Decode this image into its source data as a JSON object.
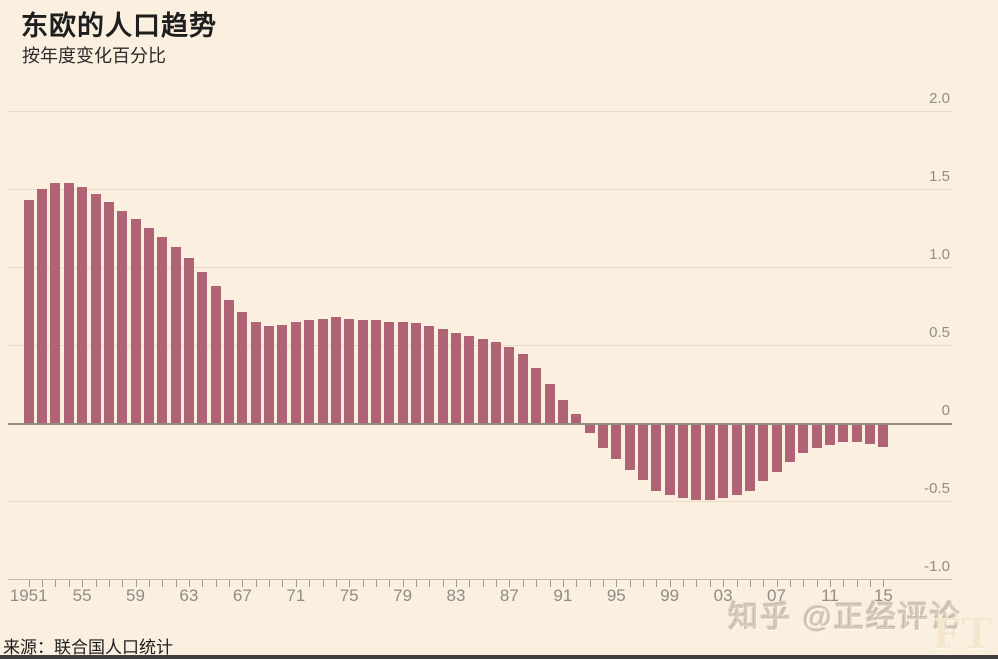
{
  "title": "东欧的人口趋势",
  "subtitle": "按年度变化百分比",
  "source": "来源：联合国人口统计",
  "watermark": "知乎 @正经评论",
  "ft_mark": "FT",
  "colors": {
    "background": "#fbefdf",
    "bar": "#b16376",
    "gridline": "#e9dcc6",
    "zero_line": "#8f8f88",
    "axis_text": "#8d8d85",
    "title_text": "#1e1e1e"
  },
  "chart_data": {
    "type": "bar",
    "title": "东欧的人口趋势",
    "subtitle": "按年度变化百分比",
    "xlabel": "",
    "ylabel": "按年度变化百分比 (%)",
    "ylim": [
      -1.0,
      2.0
    ],
    "grid": true,
    "legend": false,
    "yticks": [
      2.0,
      1.5,
      1.0,
      0.5,
      0,
      -0.5,
      -1.0
    ],
    "ytick_labels": [
      "2.0",
      "1.5",
      "1.0",
      "0.5",
      "0",
      "-0.5",
      "-1.0"
    ],
    "xticks": [
      1951,
      1955,
      1959,
      1963,
      1967,
      1971,
      1975,
      1979,
      1983,
      1987,
      1991,
      1995,
      1999,
      2003,
      2007,
      2011,
      2015
    ],
    "xtick_labels": [
      "1951",
      "55",
      "59",
      "63",
      "67",
      "71",
      "75",
      "79",
      "83",
      "87",
      "91",
      "95",
      "99",
      "03",
      "07",
      "11",
      "15"
    ],
    "x": [
      1951,
      1952,
      1953,
      1954,
      1955,
      1956,
      1957,
      1958,
      1959,
      1960,
      1961,
      1962,
      1963,
      1964,
      1965,
      1966,
      1967,
      1968,
      1969,
      1970,
      1971,
      1972,
      1973,
      1974,
      1975,
      1976,
      1977,
      1978,
      1979,
      1980,
      1981,
      1982,
      1983,
      1984,
      1985,
      1986,
      1987,
      1988,
      1989,
      1990,
      1991,
      1992,
      1993,
      1994,
      1995,
      1996,
      1997,
      1998,
      1999,
      2000,
      2001,
      2002,
      2003,
      2004,
      2005,
      2006,
      2007,
      2008,
      2009,
      2010,
      2011,
      2012,
      2013,
      2014,
      2015
    ],
    "values": [
      1.43,
      1.5,
      1.54,
      1.54,
      1.51,
      1.47,
      1.42,
      1.36,
      1.31,
      1.25,
      1.19,
      1.13,
      1.06,
      0.97,
      0.88,
      0.79,
      0.71,
      0.65,
      0.62,
      0.63,
      0.65,
      0.66,
      0.67,
      0.68,
      0.67,
      0.66,
      0.66,
      0.65,
      0.65,
      0.64,
      0.62,
      0.6,
      0.58,
      0.56,
      0.54,
      0.52,
      0.49,
      0.44,
      0.35,
      0.25,
      0.15,
      0.06,
      -0.05,
      -0.15,
      -0.22,
      -0.29,
      -0.35,
      -0.42,
      -0.45,
      -0.47,
      -0.48,
      -0.48,
      -0.47,
      -0.45,
      -0.42,
      -0.36,
      -0.3,
      -0.24,
      -0.18,
      -0.15,
      -0.13,
      -0.11,
      -0.11,
      -0.12,
      -0.14
    ],
    "source": "来源：联合国人口统计"
  }
}
